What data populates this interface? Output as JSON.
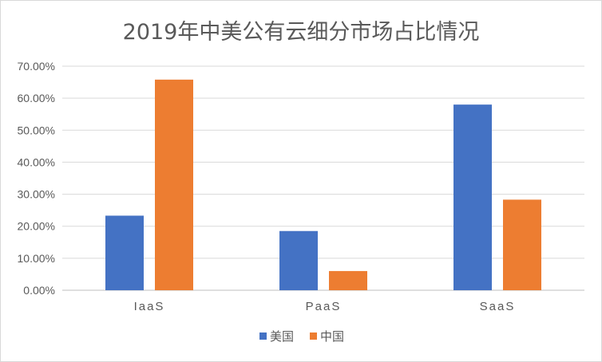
{
  "chart_data": {
    "type": "bar",
    "title": "2019年中美公有云细分市场占比情况",
    "categories": [
      "IaaS",
      "PaaS",
      "SaaS"
    ],
    "series": [
      {
        "name": "美国",
        "color": "#4472c4",
        "values": [
          23.3,
          18.5,
          58.0
        ]
      },
      {
        "name": "中国",
        "color": "#ed7d31",
        "values": [
          65.8,
          6.0,
          28.3
        ]
      }
    ],
    "y_ticks": [
      "0.00%",
      "10.00%",
      "20.00%",
      "30.00%",
      "40.00%",
      "50.00%",
      "60.00%",
      "70.00%"
    ],
    "ylim": [
      0,
      70
    ],
    "grid": true,
    "legend_position": "bottom",
    "xlabel": "",
    "ylabel": ""
  }
}
